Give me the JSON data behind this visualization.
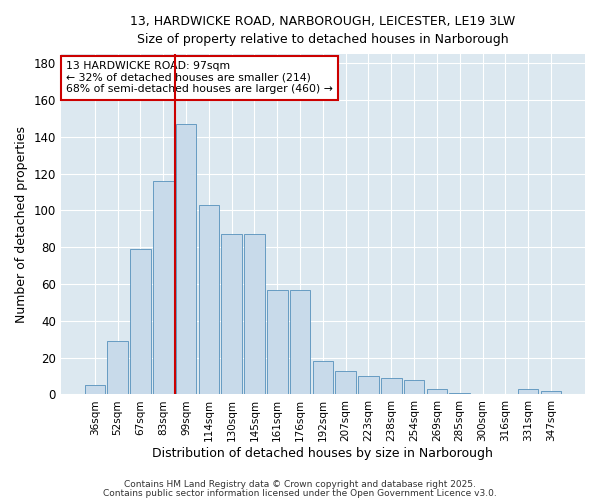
{
  "title_line1": "13, HARDWICKE ROAD, NARBOROUGH, LEICESTER, LE19 3LW",
  "title_line2": "Size of property relative to detached houses in Narborough",
  "xlabel": "Distribution of detached houses by size in Narborough",
  "ylabel": "Number of detached properties",
  "bar_labels": [
    "36sqm",
    "52sqm",
    "67sqm",
    "83sqm",
    "99sqm",
    "114sqm",
    "130sqm",
    "145sqm",
    "161sqm",
    "176sqm",
    "192sqm",
    "207sqm",
    "223sqm",
    "238sqm",
    "254sqm",
    "269sqm",
    "285sqm",
    "300sqm",
    "316sqm",
    "331sqm",
    "347sqm"
  ],
  "bar_values": [
    5,
    29,
    79,
    116,
    147,
    103,
    87,
    87,
    57,
    57,
    18,
    13,
    10,
    9,
    8,
    3,
    1,
    0,
    0,
    3,
    2
  ],
  "bar_color": "#c8daea",
  "bar_edge_color": "#5590bb",
  "red_line_color": "#cc0000",
  "annotation_line1": "13 HARDWICKE ROAD: 97sqm",
  "annotation_line2": "← 32% of detached houses are smaller (214)",
  "annotation_line3": "68% of semi-detached houses are larger (460) →",
  "annotation_box_color": "#ffffff",
  "annotation_box_edge": "#cc0000",
  "ylim": [
    0,
    185
  ],
  "yticks": [
    0,
    20,
    40,
    60,
    80,
    100,
    120,
    140,
    160,
    180
  ],
  "fig_bg_color": "#ffffff",
  "axes_bg_color": "#dce8f0",
  "grid_color": "#ffffff",
  "footer_line1": "Contains HM Land Registry data © Crown copyright and database right 2025.",
  "footer_line2": "Contains public sector information licensed under the Open Government Licence v3.0."
}
